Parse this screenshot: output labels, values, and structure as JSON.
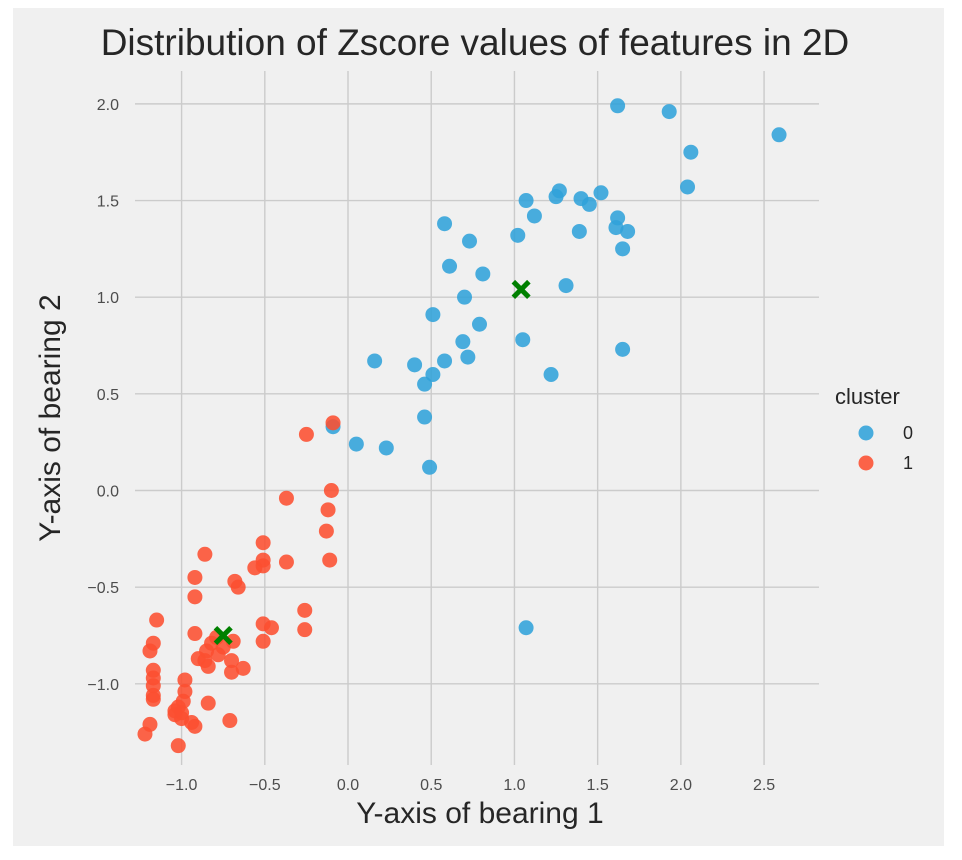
{
  "chart_data": {
    "type": "scatter",
    "title": "Distribution of Zscore values of features in 2D",
    "xlabel": "Y-axis of bearing 1",
    "ylabel": "Y-axis of bearing 2",
    "xlim": [
      -1.28,
      2.83
    ],
    "ylim": [
      -1.42,
      2.17
    ],
    "xticks": [
      -1.0,
      -0.5,
      0.0,
      0.5,
      1.0,
      1.5,
      2.0,
      2.5
    ],
    "xtick_labels": [
      "−1.0",
      "−0.5",
      "0.0",
      "0.5",
      "1.0",
      "1.5",
      "2.0",
      "2.5"
    ],
    "yticks": [
      -1.0,
      -0.5,
      0.0,
      0.5,
      1.0,
      1.5,
      2.0
    ],
    "ytick_labels": [
      "−1.0",
      "−0.5",
      "0.0",
      "0.5",
      "1.0",
      "1.5",
      "2.0"
    ],
    "grid": true,
    "legend": {
      "title": "cluster",
      "placement": "right"
    },
    "series": [
      {
        "name": "0",
        "color": "#30a2da",
        "points": [
          [
            1.62,
            1.99
          ],
          [
            1.93,
            1.96
          ],
          [
            2.59,
            1.84
          ],
          [
            2.06,
            1.75
          ],
          [
            2.04,
            1.57
          ],
          [
            1.07,
            1.5
          ],
          [
            1.27,
            1.55
          ],
          [
            1.25,
            1.52
          ],
          [
            1.4,
            1.51
          ],
          [
            1.52,
            1.54
          ],
          [
            1.45,
            1.48
          ],
          [
            1.12,
            1.42
          ],
          [
            1.62,
            1.41
          ],
          [
            1.61,
            1.36
          ],
          [
            1.68,
            1.34
          ],
          [
            1.39,
            1.34
          ],
          [
            1.02,
            1.32
          ],
          [
            1.65,
            1.25
          ],
          [
            0.58,
            1.38
          ],
          [
            0.73,
            1.29
          ],
          [
            0.61,
            1.16
          ],
          [
            0.81,
            1.12
          ],
          [
            1.31,
            1.06
          ],
          [
            0.7,
            1.0
          ],
          [
            0.51,
            0.91
          ],
          [
            0.79,
            0.86
          ],
          [
            0.69,
            0.77
          ],
          [
            1.05,
            0.78
          ],
          [
            1.65,
            0.73
          ],
          [
            0.72,
            0.69
          ],
          [
            0.16,
            0.67
          ],
          [
            0.58,
            0.67
          ],
          [
            0.4,
            0.65
          ],
          [
            0.51,
            0.6
          ],
          [
            1.22,
            0.6
          ],
          [
            0.46,
            0.55
          ],
          [
            0.46,
            0.38
          ],
          [
            -0.09,
            0.33
          ],
          [
            0.05,
            0.24
          ],
          [
            0.23,
            0.22
          ],
          [
            0.49,
            0.12
          ],
          [
            1.07,
            -0.71
          ]
        ]
      },
      {
        "name": "1",
        "color": "#fc4f30",
        "points": [
          [
            -0.09,
            0.35
          ],
          [
            -0.25,
            0.29
          ],
          [
            -0.1,
            0.0
          ],
          [
            -0.37,
            -0.04
          ],
          [
            -0.12,
            -0.1
          ],
          [
            -0.13,
            -0.21
          ],
          [
            -0.51,
            -0.27
          ],
          [
            -0.86,
            -0.33
          ],
          [
            -0.11,
            -0.36
          ],
          [
            -0.51,
            -0.36
          ],
          [
            -0.37,
            -0.37
          ],
          [
            -0.51,
            -0.39
          ],
          [
            -0.56,
            -0.4
          ],
          [
            -0.92,
            -0.45
          ],
          [
            -0.68,
            -0.47
          ],
          [
            -0.66,
            -0.5
          ],
          [
            -0.92,
            -0.55
          ],
          [
            -0.26,
            -0.62
          ],
          [
            -1.15,
            -0.67
          ],
          [
            -0.51,
            -0.69
          ],
          [
            -0.46,
            -0.71
          ],
          [
            -0.26,
            -0.72
          ],
          [
            -0.92,
            -0.74
          ],
          [
            -0.79,
            -0.76
          ],
          [
            -0.69,
            -0.78
          ],
          [
            -0.51,
            -0.78
          ],
          [
            -1.17,
            -0.79
          ],
          [
            -0.82,
            -0.79
          ],
          [
            -0.75,
            -0.81
          ],
          [
            -0.85,
            -0.83
          ],
          [
            -1.19,
            -0.83
          ],
          [
            -0.78,
            -0.85
          ],
          [
            -0.9,
            -0.87
          ],
          [
            -0.86,
            -0.88
          ],
          [
            -0.7,
            -0.88
          ],
          [
            -0.84,
            -0.91
          ],
          [
            -0.63,
            -0.92
          ],
          [
            -1.17,
            -0.93
          ],
          [
            -0.7,
            -0.94
          ],
          [
            -1.17,
            -0.97
          ],
          [
            -0.98,
            -0.98
          ],
          [
            -1.17,
            -1.01
          ],
          [
            -0.98,
            -1.04
          ],
          [
            -1.17,
            -1.06
          ],
          [
            -1.17,
            -1.08
          ],
          [
            -0.99,
            -1.09
          ],
          [
            -0.84,
            -1.1
          ],
          [
            -1.02,
            -1.12
          ],
          [
            -1.04,
            -1.14
          ],
          [
            -1.0,
            -1.15
          ],
          [
            -1.04,
            -1.16
          ],
          [
            -1.0,
            -1.18
          ],
          [
            -0.71,
            -1.19
          ],
          [
            -0.94,
            -1.2
          ],
          [
            -1.19,
            -1.21
          ],
          [
            -0.92,
            -1.22
          ],
          [
            -1.22,
            -1.26
          ],
          [
            -1.02,
            -1.32
          ]
        ]
      }
    ],
    "centroids": {
      "color": "#008000",
      "marker": "X",
      "points": [
        [
          1.04,
          1.04
        ],
        [
          -0.75,
          -0.75
        ]
      ]
    }
  }
}
